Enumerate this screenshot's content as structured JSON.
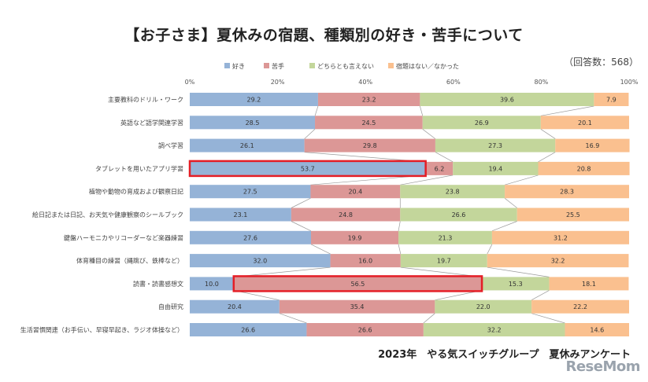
{
  "title": "【お子さま】夏休みの宿題、種類別の好き・苦手について",
  "respondents": "（回答数：568）",
  "footer": "2023年　やる気スイッチグループ　夏休みアンケート",
  "watermark": "ReseMom",
  "chart_data": {
    "type": "bar",
    "orientation": "horizontal",
    "stacked": true,
    "percent": true,
    "xlim": [
      0,
      100
    ],
    "xticks": [
      "0%",
      "20%",
      "40%",
      "60%",
      "80%",
      "100%"
    ],
    "grid": false,
    "legend_position": "top",
    "categories": [
      "主要教科のドリル・ワーク",
      "英語など語学関連学習",
      "調べ学習",
      "タブレットを用いたアプリ学習",
      "植物や動物の育成および観察日記",
      "絵日記または日記、お天気や健康観察のシールブック",
      "鍵盤ハーモニカやリコーダーなど楽器練習",
      "体育種目の練習（縄跳び、鉄棒など）",
      "読書・読書感想文",
      "自由研究",
      "生活習慣関連（お手伝い、早寝早起き、ラジオ体操など）"
    ],
    "series": [
      {
        "name": "好き",
        "color": "#95b3d7",
        "values": [
          29.2,
          28.5,
          26.1,
          53.7,
          27.5,
          23.1,
          27.6,
          32.0,
          10.0,
          20.4,
          26.6
        ],
        "labels": [
          "29.2",
          "28.5",
          "26.1",
          "53.7",
          "27.5",
          "23.1",
          "27.6",
          "32.0",
          "10.0",
          "20.4",
          "26.6"
        ]
      },
      {
        "name": "苦手",
        "color": "#dc9796",
        "values": [
          23.2,
          24.5,
          29.8,
          6.2,
          20.4,
          24.8,
          19.9,
          16.0,
          56.5,
          35.4,
          26.6
        ],
        "labels": [
          "23.2",
          "24.5",
          "29.8",
          "6.2",
          "20.4",
          "24.8",
          "19.9",
          "16.0",
          "56.5",
          "35.4",
          "26.6"
        ]
      },
      {
        "name": "どちらとも言えない",
        "color": "#c3d69b",
        "values": [
          39.6,
          26.9,
          27.3,
          19.4,
          23.8,
          26.6,
          21.3,
          19.7,
          15.3,
          22.0,
          32.2
        ],
        "labels": [
          "39.6",
          "26.9",
          "27.3",
          "19.4",
          "23.8",
          "26.6",
          "21.3",
          "19.7",
          "15.3",
          "22.0",
          "32.2"
        ]
      },
      {
        "name": "宿題はない／なかった",
        "color": "#fac08f",
        "values": [
          7.9,
          20.1,
          16.9,
          20.8,
          28.3,
          25.5,
          31.2,
          32.2,
          18.1,
          22.2,
          14.6
        ],
        "labels": [
          "7.9",
          "20.1",
          "16.9",
          "20.8",
          "28.3",
          "25.5",
          "31.2",
          "32.2",
          "18.1",
          "22.2",
          "14.6"
        ]
      }
    ],
    "highlights": [
      {
        "category_index": 3,
        "series_index": 0
      },
      {
        "category_index": 8,
        "series_index": 1
      }
    ],
    "highlight_color": "#e41e26"
  }
}
